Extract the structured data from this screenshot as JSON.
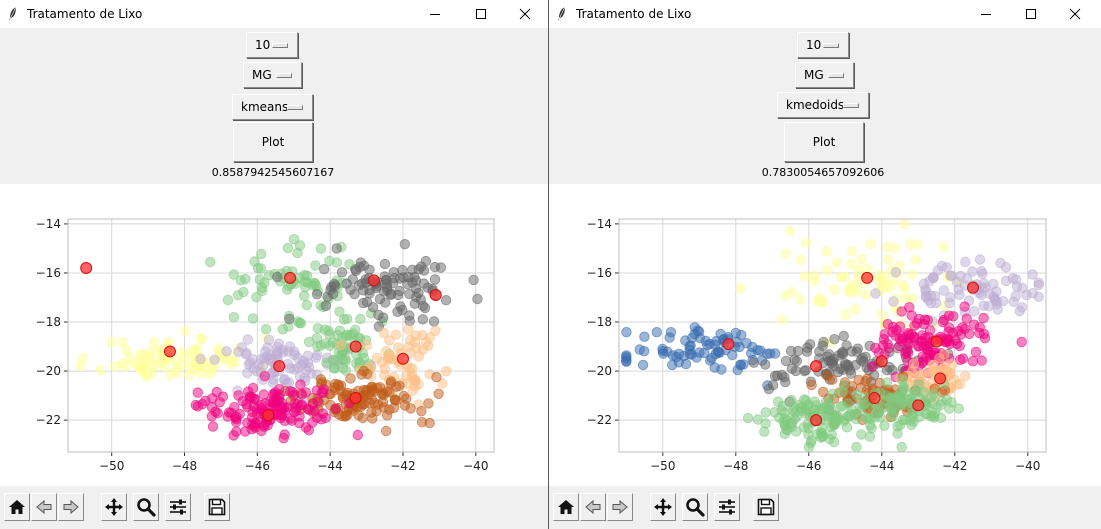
{
  "windows": [
    {
      "id": "left",
      "title": "Tratamento de Lixo",
      "controls": {
        "clusters_value": "10",
        "region_value": "MG",
        "algorithm_value": "kmeans",
        "plot_label": "Plot"
      },
      "score": "0.8587942545607167",
      "chart_data": {
        "type": "scatter",
        "xlim": [
          -51.2,
          -39.5
        ],
        "ylim": [
          -23.3,
          -13.8
        ],
        "xticks": [
          -50,
          -48,
          -46,
          -44,
          -42,
          -40
        ],
        "yticks": [
          -14,
          -16,
          -18,
          -20,
          -22
        ],
        "grid": true,
        "clusters": [
          {
            "color": "#ffff99",
            "cx": -48.2,
            "cy": -19.5,
            "sx": 1.05,
            "sy": 0.42,
            "n": 90,
            "seed": 11
          },
          {
            "color": "#beaed4",
            "cx": -45.3,
            "cy": -19.7,
            "sx": 0.85,
            "sy": 0.5,
            "n": 80,
            "seed": 12
          },
          {
            "color": "#7fc97f",
            "cx": -45.1,
            "cy": -16.5,
            "sx": 0.95,
            "sy": 0.9,
            "n": 70,
            "seed": 13
          },
          {
            "color": "#7fc97f",
            "cx": -43.4,
            "cy": -19.0,
            "sx": 0.6,
            "sy": 0.65,
            "n": 60,
            "seed": 14
          },
          {
            "color": "#666666",
            "cx": -42.3,
            "cy": -16.5,
            "sx": 1.0,
            "sy": 0.65,
            "n": 100,
            "seed": 15
          },
          {
            "color": "#fdc086",
            "cx": -42.0,
            "cy": -19.6,
            "sx": 0.55,
            "sy": 0.7,
            "n": 60,
            "seed": 16
          },
          {
            "color": "#bf5b17",
            "cx": -43.3,
            "cy": -21.2,
            "sx": 0.85,
            "sy": 0.45,
            "n": 120,
            "seed": 17
          },
          {
            "color": "#f0027f",
            "cx": -45.7,
            "cy": -21.6,
            "sx": 0.85,
            "sy": 0.5,
            "n": 140,
            "seed": 18
          }
        ],
        "centroids": [
          {
            "x": -50.7,
            "y": -15.8
          },
          {
            "x": -48.4,
            "y": -19.2
          },
          {
            "x": -45.1,
            "y": -16.2
          },
          {
            "x": -45.4,
            "y": -19.8
          },
          {
            "x": -43.3,
            "y": -19.0
          },
          {
            "x": -42.8,
            "y": -16.3
          },
          {
            "x": -41.1,
            "y": -16.9
          },
          {
            "x": -42.0,
            "y": -19.5
          },
          {
            "x": -43.3,
            "y": -21.1
          },
          {
            "x": -45.7,
            "y": -21.8
          }
        ]
      }
    },
    {
      "id": "right",
      "title": "Tratamento de Lixo",
      "controls": {
        "clusters_value": "10",
        "region_value": "MG",
        "algorithm_value": "kmedoids",
        "plot_label": "Plot"
      },
      "score": "0.7830054657092606",
      "chart_data": {
        "type": "scatter",
        "xlim": [
          -51.2,
          -39.5
        ],
        "ylim": [
          -23.3,
          -13.8
        ],
        "xticks": [
          -50,
          -48,
          -46,
          -44,
          -42,
          -40
        ],
        "yticks": [
          -14,
          -16,
          -18,
          -20,
          -22
        ],
        "grid": true,
        "clusters": [
          {
            "color": "#386cb0",
            "cx": -48.7,
            "cy": -19.2,
            "sx": 1.1,
            "sy": 0.45,
            "n": 80,
            "seed": 21
          },
          {
            "color": "#ffff99",
            "cx": -44.6,
            "cy": -16.3,
            "sx": 1.1,
            "sy": 0.95,
            "n": 80,
            "seed": 22
          },
          {
            "color": "#beaed4",
            "cx": -41.6,
            "cy": -16.7,
            "sx": 0.95,
            "sy": 0.5,
            "n": 80,
            "seed": 23
          },
          {
            "color": "#666666",
            "cx": -45.4,
            "cy": -19.8,
            "sx": 1.05,
            "sy": 0.6,
            "n": 90,
            "seed": 24
          },
          {
            "color": "#f0027f",
            "cx": -42.6,
            "cy": -18.9,
            "sx": 0.75,
            "sy": 0.55,
            "n": 120,
            "seed": 25
          },
          {
            "color": "#fdc086",
            "cx": -42.5,
            "cy": -20.2,
            "sx": 0.5,
            "sy": 0.45,
            "n": 55,
            "seed": 26
          },
          {
            "color": "#bf5b17",
            "cx": -44.3,
            "cy": -21.0,
            "sx": 0.75,
            "sy": 0.45,
            "n": 70,
            "seed": 27
          },
          {
            "color": "#7fc97f",
            "cx": -43.0,
            "cy": -21.3,
            "sx": 0.55,
            "sy": 0.45,
            "n": 70,
            "seed": 28
          },
          {
            "color": "#7fc97f",
            "cx": -45.7,
            "cy": -21.9,
            "sx": 0.95,
            "sy": 0.5,
            "n": 130,
            "seed": 29
          }
        ],
        "centroids": [
          {
            "x": -48.2,
            "y": -18.9
          },
          {
            "x": -44.4,
            "y": -16.2
          },
          {
            "x": -41.5,
            "y": -16.6
          },
          {
            "x": -42.5,
            "y": -18.8
          },
          {
            "x": -45.8,
            "y": -19.8
          },
          {
            "x": -44.0,
            "y": -19.6
          },
          {
            "x": -42.4,
            "y": -20.3
          },
          {
            "x": -44.2,
            "y": -21.1
          },
          {
            "x": -43.0,
            "y": -21.4
          },
          {
            "x": -45.8,
            "y": -22.0
          }
        ]
      }
    }
  ],
  "icons": {
    "feather": "feather-icon",
    "minimize": "minimize-icon",
    "maximize": "maximize-icon",
    "close": "close-icon"
  },
  "toolbar_icons": [
    "home-icon",
    "back-icon",
    "forward-icon",
    "pan-icon",
    "zoom-icon",
    "configure-subplots-icon",
    "save-icon"
  ]
}
